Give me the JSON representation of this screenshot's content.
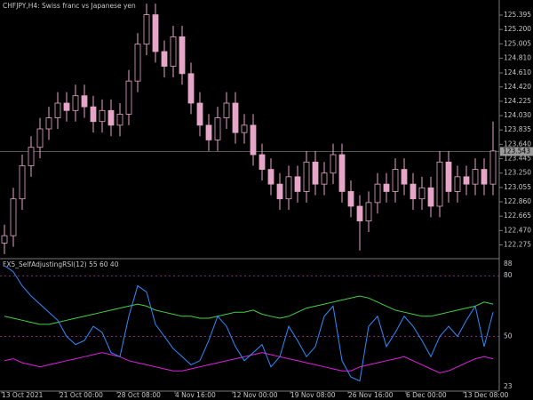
{
  "chart_data": [
    {
      "type": "candlestick",
      "title": "CHFJPY,H4:  Swiss franc vs Japanese yen",
      "up_color": "#000000",
      "down_color": "#e6a6c8",
      "outline_color": "#e6a6c8",
      "open": [
        122.3,
        122.4,
        122.9,
        123.35,
        123.6,
        123.85,
        124.0,
        124.2,
        124.1,
        124.3,
        124.15,
        123.95,
        124.1,
        123.9,
        124.05,
        124.5,
        125.0,
        125.4,
        124.9,
        124.7,
        125.1,
        124.6,
        124.2,
        123.9,
        123.7,
        124.0,
        124.2,
        123.8,
        123.9,
        123.5,
        123.3,
        123.1,
        122.9,
        123.2,
        123.0,
        123.4,
        123.1,
        123.25,
        123.5,
        123.0,
        122.8,
        122.6,
        122.85,
        123.1,
        123.0,
        123.3,
        123.1,
        122.9,
        123.05,
        122.8,
        123.4,
        123.0,
        123.2,
        123.1,
        123.3,
        123.1
      ],
      "high": [
        122.55,
        123.05,
        123.5,
        123.75,
        124.0,
        124.15,
        124.35,
        124.35,
        124.45,
        124.45,
        124.3,
        124.25,
        124.25,
        124.2,
        124.65,
        125.15,
        125.55,
        125.55,
        125.05,
        125.25,
        125.25,
        124.75,
        124.35,
        124.05,
        124.15,
        124.35,
        124.35,
        124.05,
        124.05,
        123.65,
        123.45,
        123.25,
        123.35,
        123.35,
        123.55,
        123.55,
        123.4,
        123.65,
        123.65,
        123.15,
        122.95,
        123.0,
        123.25,
        123.25,
        123.45,
        123.45,
        123.25,
        123.2,
        123.2,
        123.55,
        123.55,
        123.35,
        123.35,
        123.45,
        123.45,
        123.95
      ],
      "low": [
        122.15,
        122.25,
        122.75,
        123.2,
        123.45,
        123.7,
        123.85,
        123.95,
        123.95,
        124.0,
        123.8,
        123.8,
        123.75,
        123.75,
        123.9,
        124.35,
        124.85,
        124.75,
        124.55,
        124.55,
        124.45,
        124.05,
        123.75,
        123.55,
        123.55,
        123.85,
        123.65,
        123.65,
        123.35,
        123.15,
        122.95,
        122.75,
        122.75,
        122.85,
        122.85,
        122.95,
        122.95,
        123.1,
        122.85,
        122.65,
        122.2,
        122.45,
        122.7,
        122.85,
        122.85,
        122.95,
        122.75,
        122.75,
        122.65,
        122.65,
        122.85,
        122.85,
        122.95,
        122.95,
        122.95,
        122.95
      ],
      "close": [
        122.4,
        122.9,
        123.35,
        123.6,
        123.85,
        124.0,
        124.2,
        124.1,
        124.3,
        124.15,
        123.95,
        124.1,
        123.9,
        124.05,
        124.5,
        125.0,
        125.4,
        124.9,
        124.7,
        125.1,
        124.6,
        124.2,
        123.9,
        123.7,
        124.0,
        124.2,
        123.8,
        123.9,
        123.5,
        123.3,
        123.1,
        122.9,
        123.2,
        123.0,
        123.4,
        123.1,
        123.25,
        123.5,
        123.0,
        122.8,
        122.6,
        122.85,
        123.1,
        123.0,
        123.3,
        123.1,
        122.9,
        123.05,
        122.8,
        123.4,
        123.0,
        123.2,
        123.1,
        123.3,
        123.1,
        123.55
      ],
      "last_price": 123.543,
      "ylim": [
        122.1,
        125.6
      ],
      "yticks": [
        125.395,
        {
          "value": 125.2,
          "label": "125.200"
        },
        125.005,
        {
          "value": 124.81,
          "label": "124.810"
        },
        {
          "value": 124.61,
          "label": "124.610"
        },
        {
          "value": 124.42,
          "label": "124.420"
        },
        124.225,
        {
          "value": 124.03,
          "label": "124.030"
        },
        123.835,
        {
          "value": 123.64,
          "label": "123.640"
        },
        123.445,
        {
          "value": 123.25,
          "label": "123.250"
        },
        123.055,
        {
          "value": 122.86,
          "label": "122.860"
        },
        122.665,
        {
          "value": 122.47,
          "label": "122.470"
        },
        122.275
      ]
    },
    {
      "type": "line",
      "title": "FX5_SelfAdjustingRSI(12) 55 60 40",
      "time_labels": [
        "13 Oct 2021",
        "21 Oct 00:00",
        "28 Oct 08:00",
        "4 Nov 16:00",
        "12 Nov 00:00",
        "19 Nov 08:00",
        "26 Nov 16:00",
        "6 Dec 00:00",
        "13 Dec 08:00"
      ],
      "level_color": "#b03aa8",
      "series": [
        {
          "color": "#46d046",
          "values": [
            60,
            59,
            58,
            57,
            56,
            56,
            57,
            58,
            59,
            60,
            61,
            62,
            63,
            64,
            65,
            66,
            65,
            63,
            62,
            61,
            60,
            60,
            59,
            59,
            60,
            61,
            62,
            62,
            63,
            61,
            60,
            59,
            60,
            62,
            64,
            65,
            66,
            67,
            68,
            69,
            70,
            69,
            67,
            65,
            63,
            62,
            61,
            60,
            60,
            61,
            62,
            63,
            64,
            65,
            67,
            66
          ]
        },
        {
          "color": "#e020e0",
          "values": [
            38,
            39,
            37,
            36,
            35,
            36,
            37,
            38,
            39,
            40,
            41,
            42,
            41,
            40,
            38,
            37,
            36,
            35,
            34,
            33,
            33,
            34,
            35,
            36,
            37,
            38,
            39,
            40,
            41,
            42,
            41,
            40,
            39,
            38,
            37,
            36,
            35,
            34,
            33,
            33,
            35,
            36,
            37,
            38,
            39,
            40,
            38,
            36,
            34,
            32,
            33,
            35,
            37,
            39,
            40,
            39
          ]
        },
        {
          "color": "#2f8cff",
          "values": [
            85,
            82,
            75,
            70,
            66,
            62,
            58,
            50,
            46,
            48,
            55,
            52,
            42,
            40,
            60,
            75,
            72,
            56,
            50,
            44,
            40,
            36,
            38,
            48,
            60,
            55,
            45,
            38,
            42,
            46,
            35,
            40,
            55,
            48,
            40,
            45,
            60,
            65,
            38,
            30,
            28,
            55,
            60,
            45,
            52,
            60,
            55,
            48,
            40,
            50,
            55,
            50,
            58,
            65,
            45,
            62
          ]
        }
      ],
      "ylim": [
        23,
        88
      ],
      "yticks": [
        88,
        80,
        50,
        23
      ]
    }
  ]
}
